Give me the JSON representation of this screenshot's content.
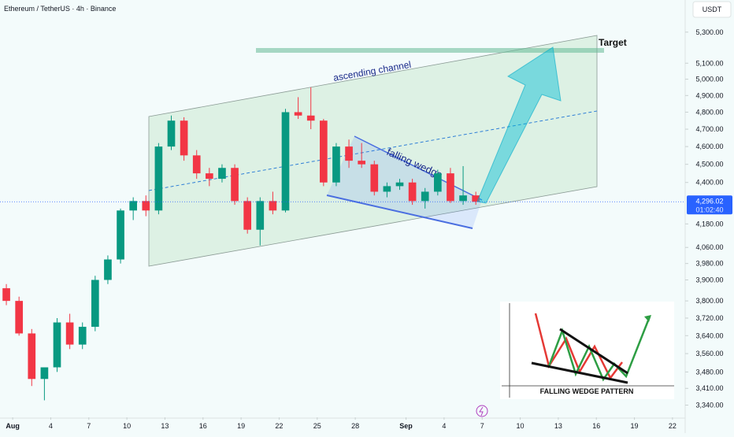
{
  "chart_data": {
    "type": "candlestick",
    "title": "Ethereum / TetherUS · 4h · Binance",
    "unit": "USDT",
    "log_scale": true,
    "up_color": "#089981",
    "down_color": "#f23645",
    "x": [
      "Jul 31",
      "Aug 1",
      "Aug 2",
      "Aug 3",
      "Aug 4",
      "Aug 5",
      "Aug 6",
      "Aug 7",
      "Aug 8",
      "Aug 9",
      "Aug 10",
      "Aug 11",
      "Aug 12",
      "Aug 13",
      "Aug 14",
      "Aug 15",
      "Aug 16",
      "Aug 17",
      "Aug 18",
      "Aug 19",
      "Aug 20",
      "Aug 21",
      "Aug 22",
      "Aug 23",
      "Aug 24",
      "Aug 25",
      "Aug 26",
      "Aug 27",
      "Aug 28",
      "Aug 29",
      "Aug 30",
      "Aug 31",
      "Sep 1",
      "Sep 2",
      "Sep 3",
      "Sep 4",
      "Sep 5",
      "Sep 6"
    ],
    "open": [
      3860,
      3800,
      3650,
      3450,
      3500,
      3700,
      3600,
      3680,
      3900,
      4000,
      4250,
      4300,
      4250,
      4600,
      4750,
      4550,
      4450,
      4420,
      4480,
      4300,
      4150,
      4300,
      4250,
      4800,
      4780,
      4750,
      4400,
      4600,
      4520,
      4500,
      4350,
      4380,
      4400,
      4300,
      4350,
      4450,
      4300,
      4330
    ],
    "high": [
      3880,
      3820,
      3670,
      3480,
      3720,
      3740,
      3700,
      3920,
      4020,
      4260,
      4320,
      4330,
      4620,
      4780,
      4770,
      4580,
      4480,
      4500,
      4500,
      4320,
      4320,
      4350,
      4820,
      4890,
      4950,
      4760,
      4620,
      4640,
      4620,
      4520,
      4400,
      4420,
      4420,
      4370,
      4470,
      4480,
      4490,
      4350
    ],
    "low": [
      3780,
      3640,
      3420,
      3360,
      3480,
      3580,
      3580,
      3660,
      3880,
      3980,
      4200,
      4220,
      4230,
      4580,
      4520,
      4420,
      4380,
      4400,
      4280,
      4130,
      4070,
      4230,
      4240,
      4760,
      4700,
      4380,
      4380,
      4480,
      4480,
      4330,
      4320,
      4360,
      4280,
      4260,
      4330,
      4290,
      4280,
      4280
    ],
    "close": [
      3800,
      3650,
      3450,
      3500,
      3700,
      3600,
      3680,
      3900,
      4000,
      4250,
      4300,
      4250,
      4600,
      4750,
      4550,
      4450,
      4420,
      4480,
      4300,
      4150,
      4300,
      4250,
      4800,
      4780,
      4750,
      4400,
      4600,
      4520,
      4500,
      4350,
      4380,
      4400,
      4300,
      4350,
      4450,
      4300,
      4330,
      4296.02
    ],
    "ylim": [
      3290,
      5515
    ],
    "yticks": [
      {
        "value": 5300,
        "label": "5,300.00"
      },
      {
        "value": 5100,
        "label": "5,100.00"
      },
      {
        "value": 5000,
        "label": "5,000.00"
      },
      {
        "value": 4900,
        "label": "4,900.00"
      },
      {
        "value": 4800,
        "label": "4,800.00"
      },
      {
        "value": 4700,
        "label": "4,700.00"
      },
      {
        "value": 4600,
        "label": "4,600.00"
      },
      {
        "value": 4500,
        "label": "4,500.00"
      },
      {
        "value": 4400,
        "label": "4,400.00"
      },
      {
        "value": 4180,
        "label": "4,180.00"
      },
      {
        "value": 4060,
        "label": "4,060.00"
      },
      {
        "value": 3980,
        "label": "3,980.00"
      },
      {
        "value": 3900,
        "label": "3,900.00"
      },
      {
        "value": 3800,
        "label": "3,800.00"
      },
      {
        "value": 3720,
        "label": "3,720.00"
      },
      {
        "value": 3640,
        "label": "3,640.00"
      },
      {
        "value": 3560,
        "label": "3,560.00"
      },
      {
        "value": 3480,
        "label": "3,480.00"
      },
      {
        "value": 3410,
        "label": "3,410.00"
      },
      {
        "value": 3340,
        "label": "3,340.00"
      }
    ],
    "xlim": [
      "Jul 31",
      "Sep 23"
    ],
    "xticks": [
      {
        "value": "Aug 1",
        "label": "Aug"
      },
      {
        "value": "Aug 4",
        "label": "4"
      },
      {
        "value": "Aug 7",
        "label": "7"
      },
      {
        "value": "Aug 10",
        "label": "10"
      },
      {
        "value": "Aug 13",
        "label": "13"
      },
      {
        "value": "Aug 16",
        "label": "16"
      },
      {
        "value": "Aug 19",
        "label": "19"
      },
      {
        "value": "Aug 22",
        "label": "22"
      },
      {
        "value": "Aug 25",
        "label": "25"
      },
      {
        "value": "Aug 28",
        "label": "28"
      },
      {
        "value": "Sep 1",
        "label": "Sep"
      },
      {
        "value": "Sep 4",
        "label": "4"
      },
      {
        "value": "Sep 7",
        "label": "7"
      },
      {
        "value": "Sep 10",
        "label": "10"
      },
      {
        "value": "Sep 13",
        "label": "13"
      },
      {
        "value": "Sep 16",
        "label": "16"
      },
      {
        "value": "Sep 19",
        "label": "19"
      },
      {
        "value": "Sep 22",
        "label": "22"
      }
    ],
    "last_price": {
      "value": 4296.02,
      "label": "4,296.02"
    },
    "countdown": "01:02:40",
    "annotations": {
      "channel": "ascending channel",
      "wedge": "falling wedge",
      "target": "Target"
    },
    "inset": {
      "title": "FALLING WEDGE PATTERN"
    }
  }
}
